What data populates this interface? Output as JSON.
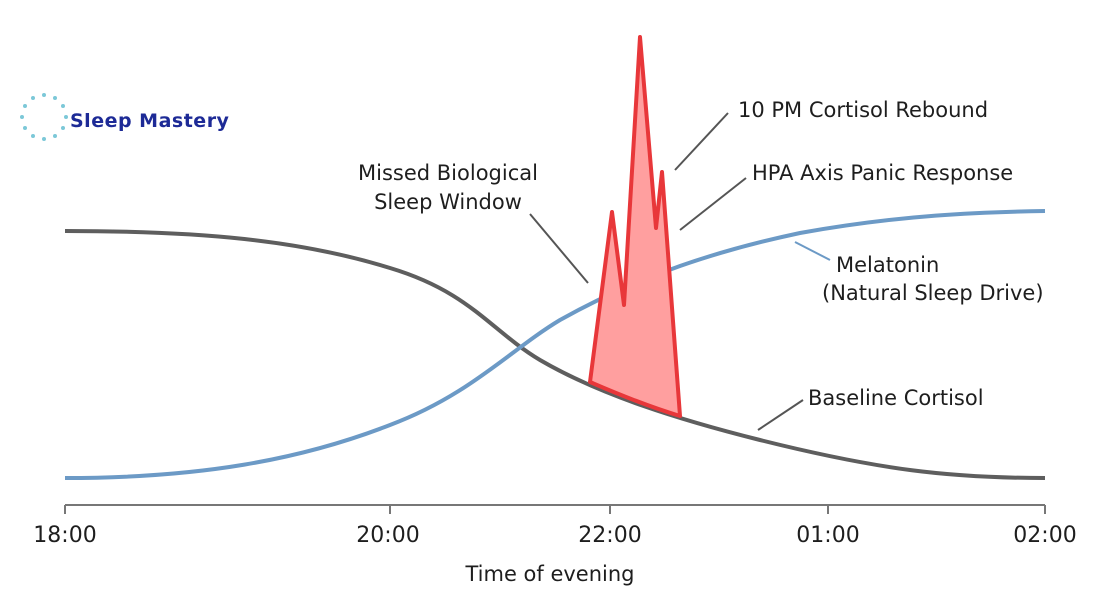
{
  "brand": "Sleep Mastery",
  "annotations": {
    "missed_window": [
      "Missed Biological",
      "Sleep Window"
    ],
    "rebound": "10 PM Cortisol Rebound",
    "hpa": "HPA Axis Panic Response",
    "melatonin": [
      "Melatonin",
      "(Natural Sleep Drive)"
    ],
    "baseline": "Baseline Cortisol"
  },
  "x_axis": {
    "ticks": [
      "18:00",
      "20:00",
      "22:00",
      "01:00",
      "02:00"
    ],
    "title": "Time of evening"
  }
}
